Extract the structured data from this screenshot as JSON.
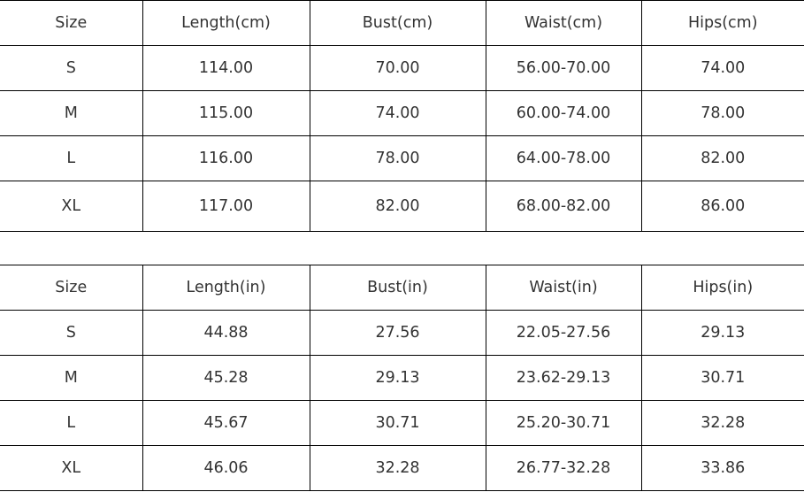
{
  "cm_table": {
    "headers": [
      "Size",
      "Length(cm)",
      "Bust(cm)",
      "Waist(cm)",
      "Hips(cm)"
    ],
    "rows": [
      [
        "S",
        "114.00",
        "70.00",
        "56.00-70.00",
        "74.00"
      ],
      [
        "M",
        "115.00",
        "74.00",
        "60.00-74.00",
        "78.00"
      ],
      [
        "L",
        "116.00",
        "78.00",
        "64.00-78.00",
        "82.00"
      ],
      [
        "XL",
        "117.00",
        "82.00",
        "68.00-82.00",
        "86.00"
      ]
    ]
  },
  "in_table": {
    "headers": [
      "Size",
      "Length(in)",
      "Bust(in)",
      "Waist(in)",
      "Hips(in)"
    ],
    "rows": [
      [
        "S",
        "44.88",
        "27.56",
        "22.05-27.56",
        "29.13"
      ],
      [
        "M",
        "45.28",
        "29.13",
        "23.62-29.13",
        "30.71"
      ],
      [
        "L",
        "45.67",
        "30.71",
        "25.20-30.71",
        "32.28"
      ],
      [
        "XL",
        "46.06",
        "32.28",
        "26.77-32.28",
        "33.86"
      ]
    ]
  }
}
